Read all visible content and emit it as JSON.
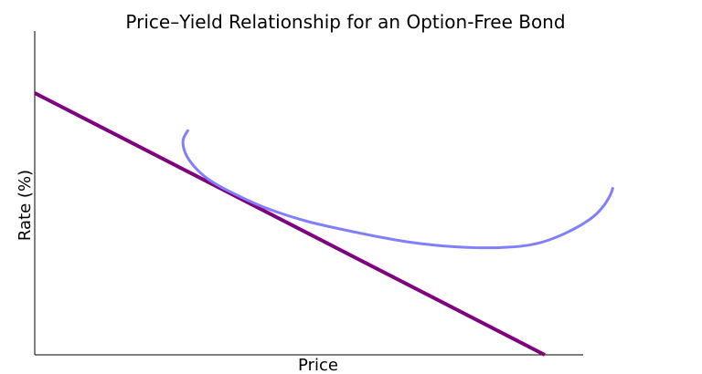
{
  "chart_data": {
    "type": "line",
    "title": "Price–Yield Relationship for an Option-Free Bond",
    "xlabel": "Price",
    "ylabel": "Rate (%)",
    "grid": false,
    "legend": "none",
    "xlim": [
      0,
      100
    ],
    "ylim": [
      0,
      100
    ],
    "series": [
      {
        "color": "#7f007f",
        "x": [
          0,
          88
        ],
        "y": [
          100,
          0
        ]
      },
      {
        "color": "#8080ff",
        "x": [
          26.5,
          25.6,
          26.0,
          27.5,
          30.0,
          34.0,
          40.0,
          47.0,
          55.0,
          62.0,
          66.5,
          70.5,
          74.0,
          77.0,
          79.5,
          81.5,
          83.5,
          85.5,
          87.5,
          89.5,
          91.6,
          94.2,
          96.5,
          98.2,
          99.3,
          99.8
        ],
        "y": [
          86,
          82,
          77,
          72,
          67,
          62,
          56,
          51,
          47,
          44,
          42.5,
          41.6,
          41.1,
          40.9,
          40.9,
          41.1,
          41.4,
          42.0,
          43.0,
          44.5,
          46.5,
          49.5,
          53.0,
          57.0,
          61.0,
          64.0
        ]
      }
    ]
  }
}
